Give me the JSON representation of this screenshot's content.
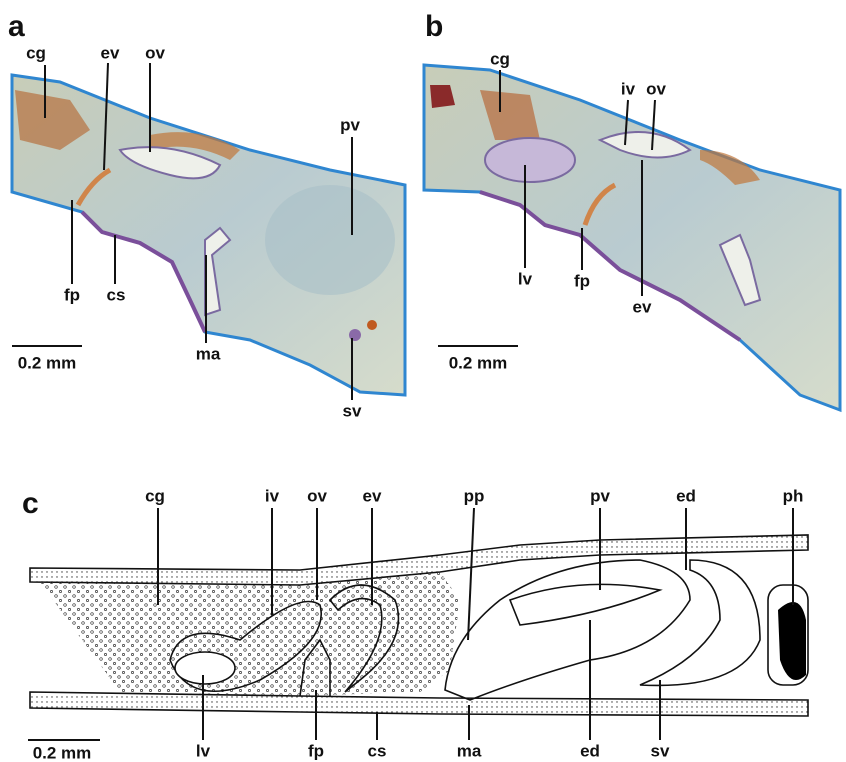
{
  "panels": [
    {
      "letter": "a",
      "labels": [
        "cg",
        "ev",
        "ov",
        "pv",
        "fp",
        "cs",
        "ma",
        "sv"
      ],
      "scale_bar": "0.2 mm"
    },
    {
      "letter": "b",
      "labels": [
        "cg",
        "iv",
        "ov",
        "lv",
        "fp",
        "ev"
      ],
      "scale_bar": "0.2 mm"
    },
    {
      "letter": "c",
      "labels": [
        "cg",
        "iv",
        "ov",
        "ev",
        "pp",
        "pv",
        "ed",
        "ph",
        "lv",
        "fp",
        "cs",
        "ma",
        "ed",
        "sv"
      ],
      "scale_bar": "0.2 mm"
    }
  ]
}
